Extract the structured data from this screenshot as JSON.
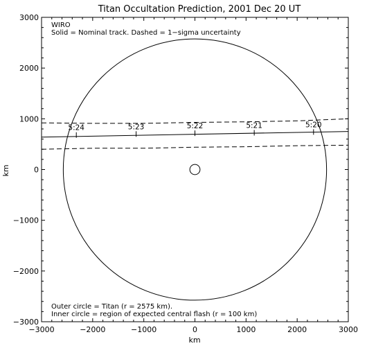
{
  "chart_data": {
    "type": "scatter",
    "title": "Titan Occultation Prediction, 2001 Dec 20 UT",
    "xlabel": "km",
    "ylabel": "km",
    "xlim": [
      -3000,
      3000
    ],
    "ylim": [
      -3000,
      3000
    ],
    "xticks": [
      -3000,
      -2000,
      -1000,
      0,
      1000,
      2000,
      3000
    ],
    "yticks": [
      -3000,
      -2000,
      -1000,
      0,
      1000,
      2000,
      3000
    ],
    "xtick_labels": [
      "−3000",
      "−2000",
      "−1000",
      "0",
      "1000",
      "2000",
      "3000"
    ],
    "ytick_labels": [
      "−3000",
      "−2000",
      "−1000",
      "0",
      "1000",
      "2000",
      "3000"
    ],
    "grid": false,
    "annotations": [
      "WIRO",
      "Solid = Nominal track.  Dashed = 1−sigma uncertainty",
      "Outer circle = Titan (r = 2575 km).",
      "Inner circle = region of expected central flash (r = 100 km)"
    ],
    "circles": [
      {
        "role": "Titan",
        "center": [
          0,
          0
        ],
        "r": 2575
      },
      {
        "role": "central flash",
        "center": [
          0,
          0
        ],
        "r": 100
      }
    ],
    "nominal_track": {
      "x": [
        -3000,
        3000
      ],
      "y": [
        640,
        750
      ]
    },
    "uncertainty_upper": {
      "x": [
        -3000,
        -2000,
        -1000,
        0,
        1000,
        2000,
        3000
      ],
      "y": [
        920,
        910,
        910,
        930,
        940,
        960,
        1000
      ]
    },
    "uncertainty_lower": {
      "x": [
        -3000,
        -2000,
        -1000,
        0,
        1000,
        2000,
        3000
      ],
      "y": [
        400,
        420,
        420,
        440,
        450,
        470,
        480
      ]
    },
    "time_marks": [
      {
        "label": "5:24",
        "x": -2320,
        "y": 680
      },
      {
        "label": "5:23",
        "x": -1150,
        "y": 700
      },
      {
        "label": "5:22",
        "x": 0,
        "y": 715
      },
      {
        "label": "5:21",
        "x": 1160,
        "y": 725
      },
      {
        "label": "5:20",
        "x": 2320,
        "y": 740
      }
    ]
  }
}
